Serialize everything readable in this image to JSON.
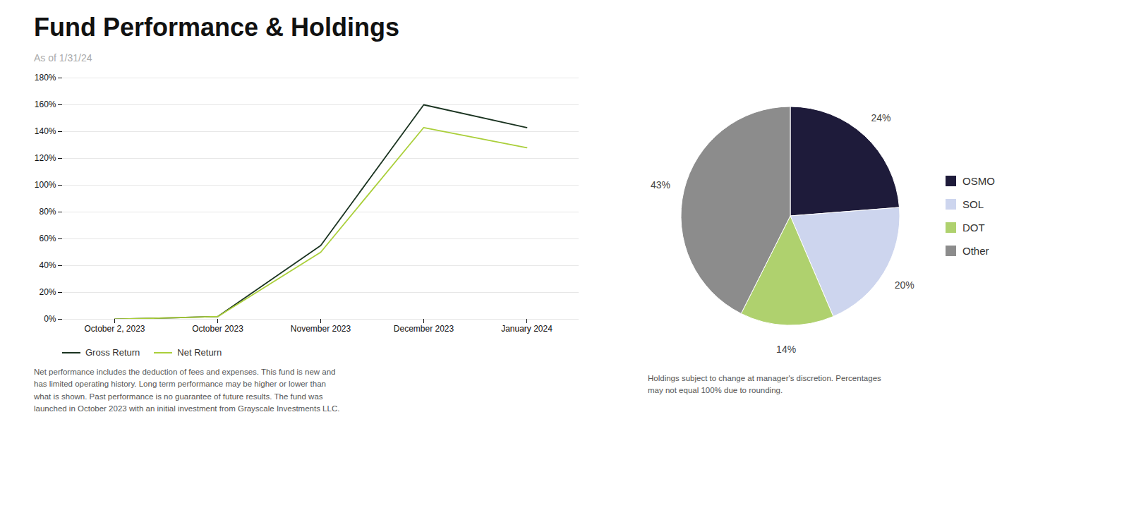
{
  "chart_data": [
    {
      "type": "line",
      "title": "Fund Performance & Holdings",
      "subtitle": "As of 1/31/24",
      "categories": [
        "October 2, 2023",
        "October 2023",
        "November 2023",
        "December 2023",
        "January 2024"
      ],
      "series": [
        {
          "name": "Gross Return",
          "color": "#1a3320",
          "values": [
            0,
            2,
            55,
            160,
            143
          ]
        },
        {
          "name": "Net Return",
          "color": "#aacf3a",
          "values": [
            0,
            2,
            50,
            143,
            128
          ]
        }
      ],
      "ylim": [
        0,
        180
      ],
      "yticks": [
        {
          "value": 0,
          "label": "0%"
        },
        {
          "value": 20,
          "label": "20%"
        },
        {
          "value": 40,
          "label": "40%"
        },
        {
          "value": 60,
          "label": "60%"
        },
        {
          "value": 80,
          "label": "80%"
        },
        {
          "value": 100,
          "label": "100%"
        },
        {
          "value": 120,
          "label": "120%"
        },
        {
          "value": 140,
          "label": "140%"
        },
        {
          "value": 160,
          "label": "160%"
        },
        {
          "value": 180,
          "label": "180%"
        }
      ],
      "grid": true,
      "legend": "bottom",
      "annotations": [
        "Net performance includes the deduction of fees and expenses. This fund is new and\nhas limited operating history. Long term performance may be higher or lower than\nwhat is shown. Past performance is no guarantee of future results. The fund was\nlaunched in October 2023 with an initial investment from Grayscale Investments LLC."
      ]
    },
    {
      "type": "pie",
      "categories": [
        "OSMO",
        "SOL",
        "DOT",
        "Other"
      ],
      "values": [
        24,
        20,
        14,
        43
      ],
      "value_labels": [
        "24%",
        "20%",
        "14%",
        "43%"
      ],
      "colors": [
        "#1e1b3a",
        "#cdd5ee",
        "#afd16e",
        "#8c8c8c"
      ],
      "data_labels": true,
      "legend": "right",
      "annotations": [
        "Holdings subject to change at manager's discretion.  Percentages\nmay not equal 100% due to rounding."
      ]
    }
  ]
}
